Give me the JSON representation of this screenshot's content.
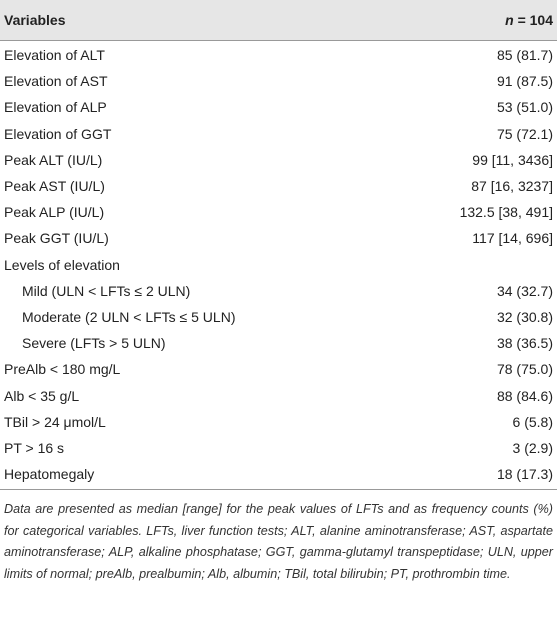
{
  "table": {
    "header": {
      "variable": "Variables",
      "n_symbol": "n",
      "n_rest": "= 104"
    },
    "rows": [
      {
        "label": "Elevation of ALT",
        "value": "85 (81.7)"
      },
      {
        "label": "Elevation of AST",
        "value": "91 (87.5)"
      },
      {
        "label": "Elevation of ALP",
        "value": "53 (51.0)"
      },
      {
        "label": "Elevation of GGT",
        "value": "75 (72.1)"
      },
      {
        "label": "Peak ALT (IU/L)",
        "value": "99 [11, 3436]"
      },
      {
        "label": "Peak AST (IU/L)",
        "value": "87 [16, 3237]"
      },
      {
        "label": "Peak ALP (IU/L)",
        "value": "132.5 [38, 491]"
      },
      {
        "label": "Peak GGT (IU/L)",
        "value": "117 [14, 696]"
      },
      {
        "label": "Levels of elevation",
        "subrows": [
          {
            "label": "Mild (ULN < LFTs ≤ 2 ULN)",
            "value": "34 (32.7)"
          },
          {
            "label": "Moderate (2 ULN < LFTs ≤ 5 ULN)",
            "value": "32 (30.8)"
          },
          {
            "label": "Severe (LFTs > 5 ULN)",
            "value": "38 (36.5)"
          }
        ]
      },
      {
        "label": "PreAlb < 180 mg/L",
        "value": "78 (75.0)"
      },
      {
        "label": "Alb < 35 g/L",
        "value": "88 (84.6)"
      },
      {
        "label": "TBil > 24 μmol/L",
        "value": "6 (5.8)"
      },
      {
        "label": "PT > 16 s",
        "value": "3 (2.9)"
      },
      {
        "label": "Hepatomegaly",
        "value": "18 (17.3)"
      }
    ],
    "footnote": "Data are presented as median [range] for the peak values of LFTs and as frequency counts (%) for categorical variables. LFTs, liver function tests; ALT, alanine aminotransferase; AST, aspartate aminotransferase; ALP, alkaline phosphatase; GGT, gamma-glutamyl transpeptidase; ULN, upper limits of normal; preAlb, prealbumin; Alb, albumin; TBil, total bilirubin; PT, prothrombin time."
  }
}
